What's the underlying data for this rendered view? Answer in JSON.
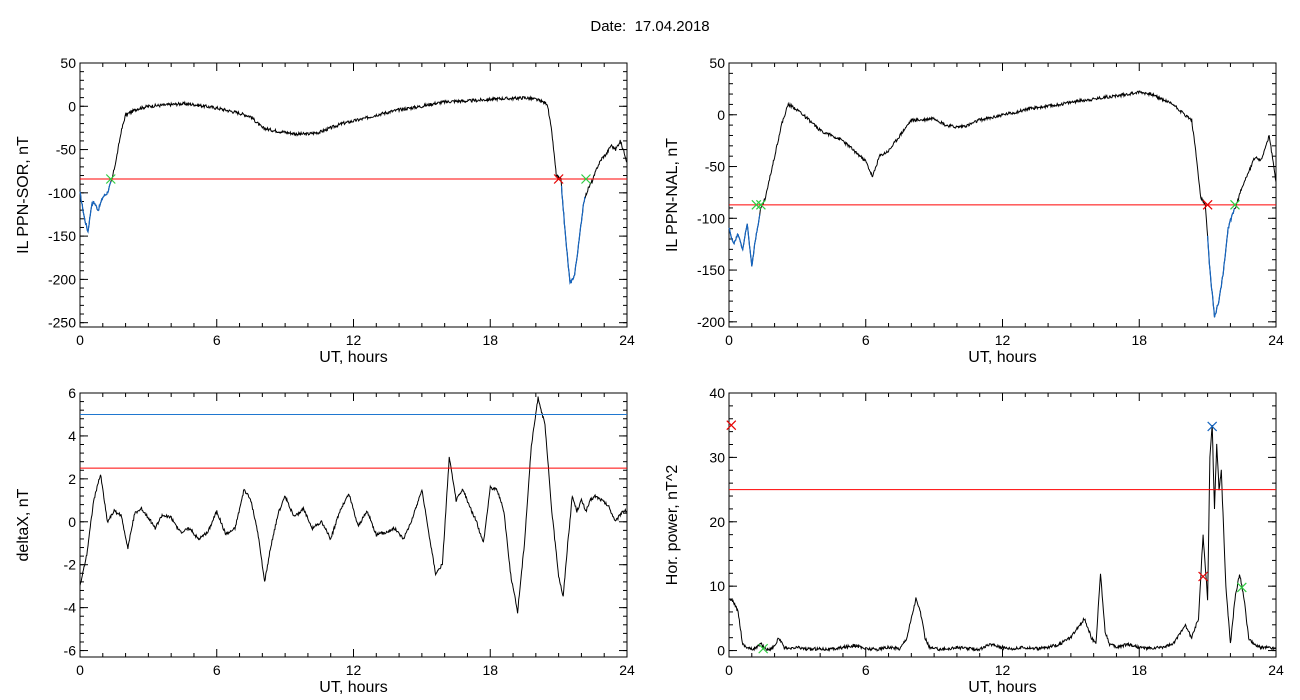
{
  "header": {
    "date_label": "Date:",
    "date_value": "17.04.2018"
  },
  "colors": {
    "trace": "#000000",
    "threshold_red": "#ff0000",
    "threshold_blue": "#1f77d0",
    "event_blue": "#1565c0",
    "marker_green": "#2ecc40",
    "marker_red": "#e60000",
    "marker_blue": "#1565c0"
  },
  "chart_data": [
    {
      "id": "il-sor",
      "type": "line",
      "title": "",
      "xlabel": "UT, hours",
      "ylabel": "IL PPN-SOR, nT",
      "xlim": [
        0,
        24
      ],
      "ylim": [
        -255,
        50
      ],
      "xticks": [
        0,
        6,
        12,
        18,
        24
      ],
      "yticks": [
        50,
        0,
        -50,
        -100,
        -150,
        -200,
        -250
      ],
      "series": [
        {
          "x": [
            0,
            0.2,
            0.35,
            0.5,
            0.6,
            0.8,
            1.0,
            1.2,
            1.4,
            1.6,
            1.8,
            2.0,
            2.5,
            3,
            3.5,
            4,
            4.5,
            5,
            5.5,
            6,
            6.5,
            7,
            7.5,
            8,
            8.5,
            9,
            9.5,
            10,
            10.5,
            11,
            11.5,
            12,
            12.5,
            13,
            13.5,
            14,
            14.5,
            15,
            15.5,
            16,
            16.5,
            17,
            17.5,
            18,
            18.5,
            19,
            19.5,
            20,
            20.3,
            20.5,
            20.7,
            20.9,
            21.1,
            21.3,
            21.5,
            21.7,
            21.9,
            22.1,
            22.3,
            22.5,
            22.7,
            22.9,
            23.1,
            23.3,
            23.5,
            23.7,
            23.9,
            24
          ],
          "y": [
            -100,
            -130,
            -145,
            -115,
            -110,
            -120,
            -105,
            -100,
            -85,
            -60,
            -30,
            -10,
            -3,
            0,
            1,
            2,
            3,
            2,
            0,
            -2,
            -5,
            -8,
            -12,
            -25,
            -28,
            -30,
            -32,
            -32,
            -30,
            -25,
            -20,
            -17,
            -14,
            -10,
            -7,
            -4,
            -2,
            0,
            3,
            5,
            6,
            6,
            7,
            8,
            9,
            9,
            10,
            8,
            5,
            3,
            -30,
            -80,
            -85,
            -150,
            -205,
            -195,
            -155,
            -110,
            -95,
            -85,
            -70,
            -60,
            -55,
            -45,
            -50,
            -40,
            -55,
            -65
          ]
        }
      ],
      "threshold_red": -84,
      "event_segments": [
        [
          0,
          1.35
        ],
        [
          21.0,
          22.2
        ]
      ],
      "markers": [
        {
          "color": "green",
          "x": 1.35,
          "y": -84
        },
        {
          "color": "red",
          "x": 21.0,
          "y": -84
        },
        {
          "color": "green",
          "x": 22.2,
          "y": -84
        }
      ]
    },
    {
      "id": "il-nal",
      "type": "line",
      "title": "",
      "xlabel": "UT, hours",
      "ylabel": "IL PPN-NAL, nT",
      "xlim": [
        0,
        24
      ],
      "ylim": [
        -205,
        50
      ],
      "xticks": [
        0,
        6,
        12,
        18,
        24
      ],
      "yticks": [
        50,
        0,
        -50,
        -100,
        -150,
        -200
      ],
      "series": [
        {
          "x": [
            0,
            0.2,
            0.4,
            0.6,
            0.8,
            1.0,
            1.2,
            1.4,
            1.6,
            1.8,
            2.0,
            2.3,
            2.6,
            3,
            3.5,
            4,
            4.5,
            5,
            5.5,
            6,
            6.3,
            6.6,
            7,
            7.5,
            8,
            8.5,
            9,
            9.5,
            10,
            10.5,
            11,
            11.5,
            12,
            12.5,
            13,
            13.5,
            14,
            14.5,
            15,
            15.5,
            16,
            16.5,
            17,
            17.5,
            18,
            18.5,
            19,
            19.5,
            20,
            20.3,
            20.5,
            20.7,
            20.9,
            21.1,
            21.3,
            21.5,
            21.7,
            21.9,
            22.1,
            22.3,
            22.5,
            22.7,
            22.9,
            23.1,
            23.3,
            23.5,
            23.7,
            23.9,
            24
          ],
          "y": [
            -110,
            -125,
            -115,
            -130,
            -105,
            -145,
            -115,
            -90,
            -80,
            -60,
            -40,
            -10,
            10,
            5,
            -5,
            -15,
            -20,
            -25,
            -35,
            -45,
            -60,
            -40,
            -35,
            -20,
            -5,
            -5,
            -3,
            -10,
            -12,
            -10,
            -5,
            -3,
            0,
            2,
            5,
            7,
            8,
            10,
            12,
            14,
            15,
            17,
            18,
            20,
            22,
            20,
            15,
            10,
            0,
            -5,
            -40,
            -80,
            -87,
            -150,
            -195,
            -180,
            -150,
            -110,
            -95,
            -85,
            -70,
            -60,
            -50,
            -40,
            -45,
            -35,
            -20,
            -50,
            -65
          ]
        }
      ],
      "threshold_red": -87,
      "event_segments": [
        [
          0,
          1.35
        ],
        [
          21.0,
          22.2
        ]
      ],
      "markers": [
        {
          "color": "green",
          "x": 1.2,
          "y": -87
        },
        {
          "color": "green",
          "x": 1.4,
          "y": -87
        },
        {
          "color": "red",
          "x": 21.0,
          "y": -87
        },
        {
          "color": "green",
          "x": 22.2,
          "y": -87
        }
      ]
    },
    {
      "id": "deltax",
      "type": "line",
      "title": "",
      "xlabel": "UT, hours",
      "ylabel": "deltaX, nT",
      "xlim": [
        0,
        24
      ],
      "ylim": [
        -6.3,
        6
      ],
      "xticks": [
        0,
        6,
        12,
        18,
        24
      ],
      "yticks": [
        6,
        4,
        2,
        0,
        -2,
        -4,
        -6
      ],
      "series": [
        {
          "x": [
            0,
            0.3,
            0.6,
            0.9,
            1.0,
            1.2,
            1.5,
            1.8,
            2.1,
            2.4,
            2.7,
            3,
            3.3,
            3.6,
            4,
            4.4,
            4.8,
            5.2,
            5.6,
            6,
            6.4,
            6.8,
            7.2,
            7.5,
            7.8,
            8.1,
            8.4,
            8.7,
            9,
            9.4,
            9.8,
            10.2,
            10.6,
            11,
            11.4,
            11.8,
            12.2,
            12.6,
            13,
            13.4,
            13.8,
            14.2,
            14.6,
            15,
            15.3,
            15.6,
            15.9,
            16.2,
            16.5,
            16.8,
            17.1,
            17.4,
            17.7,
            18,
            18.3,
            18.6,
            18.9,
            19.2,
            19.5,
            19.8,
            20.1,
            20.4,
            20.7,
            21,
            21.2,
            21.4,
            21.6,
            21.8,
            22,
            22.2,
            22.4,
            22.6,
            22.9,
            23.2,
            23.5,
            23.8,
            24
          ],
          "y": [
            -3,
            -1.5,
            1,
            2.2,
            1.5,
            0,
            0.5,
            0.3,
            -1.2,
            0.4,
            0.6,
            0.2,
            -0.3,
            0.3,
            0.2,
            -0.5,
            -0.3,
            -0.8,
            -0.5,
            0.5,
            -0.6,
            -0.3,
            1.5,
            1,
            -0.5,
            -2.8,
            -1,
            0.4,
            1.2,
            0.2,
            0.6,
            -0.3,
            0,
            -0.8,
            0.5,
            1.3,
            -0.2,
            0.5,
            -0.6,
            -0.5,
            -0.3,
            -0.8,
            0.2,
            1.5,
            -0.5,
            -2.4,
            -2,
            3,
            1,
            1.5,
            0.7,
            0,
            -1,
            1.6,
            1.5,
            0.5,
            -2.5,
            -4.2,
            -1,
            3.5,
            5.8,
            4.5,
            0.5,
            -2.5,
            -3.5,
            -1,
            1.2,
            0.5,
            1,
            0.5,
            1,
            1.2,
            1,
            0.7,
            0,
            0.5,
            0.5
          ]
        }
      ],
      "threshold_red": 2.5,
      "threshold_blue": 5.0,
      "markers": []
    },
    {
      "id": "hor-power",
      "type": "line",
      "title": "",
      "xlabel": "UT, hours",
      "ylabel": "Hor. power, nT^2",
      "xlim": [
        0,
        24
      ],
      "ylim": [
        -1,
        40
      ],
      "xticks": [
        0,
        6,
        12,
        18,
        24
      ],
      "yticks": [
        40,
        30,
        20,
        10,
        0
      ],
      "series": [
        {
          "x": [
            0,
            0.2,
            0.4,
            0.6,
            0.8,
            1.0,
            1.2,
            1.4,
            1.6,
            1.8,
            2.0,
            2.2,
            2.4,
            2.6,
            3,
            3.5,
            4,
            4.5,
            5,
            5.5,
            6,
            6.5,
            7,
            7.5,
            7.8,
            8.0,
            8.2,
            8.4,
            8.6,
            8.8,
            9,
            9.5,
            10,
            10.5,
            11,
            11.5,
            12,
            12.5,
            13,
            13.5,
            14,
            14.5,
            15,
            15.3,
            15.6,
            15.9,
            16.1,
            16.3,
            16.5,
            16.7,
            17,
            17.5,
            18,
            18.5,
            19,
            19.5,
            20,
            20.3,
            20.6,
            20.8,
            21.0,
            21.1,
            21.2,
            21.3,
            21.4,
            21.5,
            21.6,
            21.8,
            22,
            22.2,
            22.4,
            22.6,
            22.8,
            23,
            23.3,
            23.6,
            24
          ],
          "y": [
            8,
            7.5,
            6,
            1,
            0.5,
            0.2,
            0.5,
            1,
            0.3,
            0.2,
            0.8,
            2,
            0.5,
            0.2,
            0.5,
            0.2,
            0.3,
            0.2,
            0.5,
            0.8,
            0.3,
            0.2,
            0.5,
            0.3,
            2,
            5,
            8,
            6,
            2,
            0.5,
            0.3,
            0.2,
            0.5,
            0.3,
            0.2,
            1,
            0.5,
            0.3,
            0.5,
            0.3,
            0.5,
            1,
            2,
            3.5,
            5,
            2,
            1,
            12,
            3,
            1,
            0.5,
            1,
            0.5,
            0.3,
            0.5,
            1,
            4,
            2,
            5,
            18,
            8,
            30,
            35,
            22,
            32,
            25,
            28,
            10,
            1,
            8,
            12,
            8,
            2,
            1,
            0.5,
            0.5,
            0.3
          ]
        }
      ],
      "threshold_red": 25,
      "markers": [
        {
          "color": "red",
          "x": 0.1,
          "y": 35
        },
        {
          "color": "green",
          "x": 1.5,
          "y": 0.3
        },
        {
          "color": "red",
          "x": 20.8,
          "y": 11.5
        },
        {
          "color": "blue",
          "x": 21.2,
          "y": 34.8
        },
        {
          "color": "green",
          "x": 22.5,
          "y": 9.8
        }
      ]
    }
  ]
}
